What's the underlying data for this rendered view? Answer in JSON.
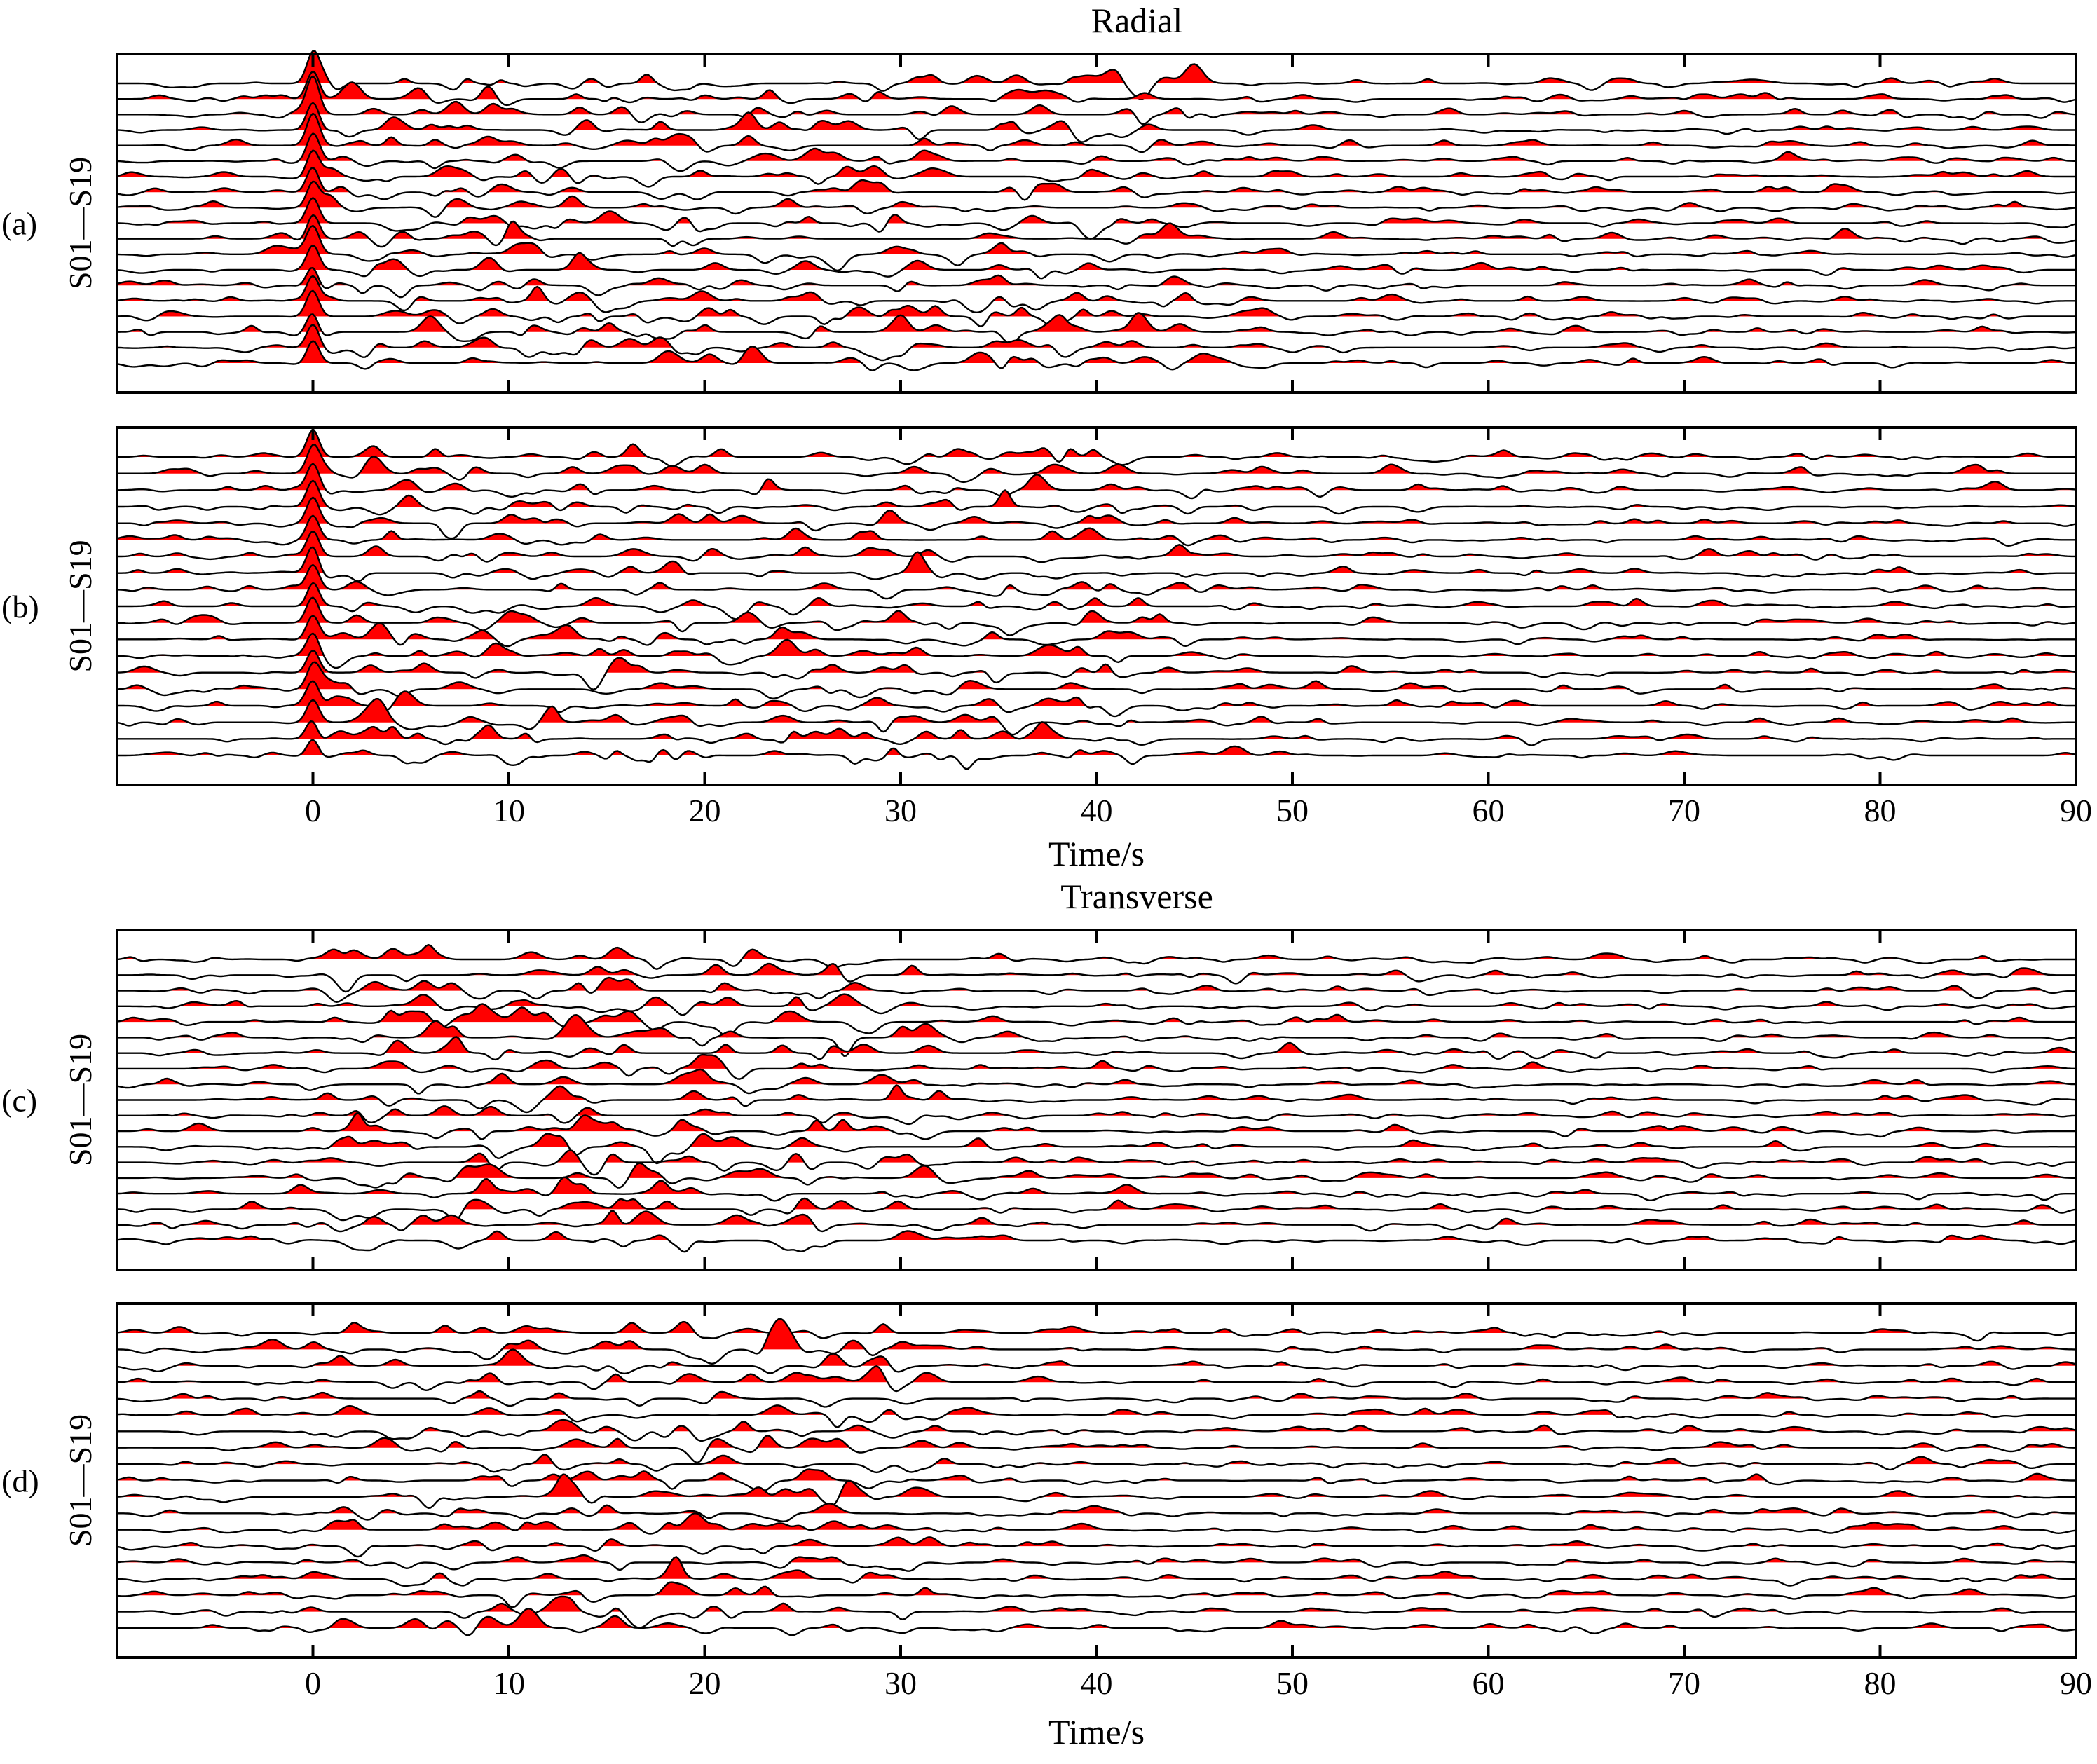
{
  "figure": {
    "top_title": "Radial",
    "bottom_title": "Transverse",
    "xlabel": "Time/s"
  },
  "chart_data": [
    {
      "type": "line",
      "panel_label": "(a)",
      "group_title": "Radial",
      "ylabel": "S01—S19",
      "xlabel": "",
      "xlim": [
        -10,
        90
      ],
      "xticks": [
        0,
        10,
        20,
        30,
        40,
        50,
        60,
        70,
        80,
        90
      ],
      "xticklabels_shown": false,
      "trace_count": 19,
      "positive_fill_color": "#ff0000",
      "trace_color": "#000000",
      "first_arrival_time": 0
    },
    {
      "type": "line",
      "panel_label": "(b)",
      "group_title": "Radial",
      "ylabel": "S01—S19",
      "xlabel": "Time/s",
      "xlim": [
        -10,
        90
      ],
      "xticks": [
        0,
        10,
        20,
        30,
        40,
        50,
        60,
        70,
        80,
        90
      ],
      "xticklabels": [
        "0",
        "10",
        "20",
        "30",
        "40",
        "50",
        "60",
        "70",
        "80",
        "90"
      ],
      "xticklabels_shown": true,
      "trace_count": 19,
      "positive_fill_color": "#ff0000",
      "trace_color": "#000000",
      "first_arrival_time": 0
    },
    {
      "type": "line",
      "panel_label": "(c)",
      "group_title": "Transverse",
      "ylabel": "S01—S19",
      "xlabel": "",
      "xlim": [
        -10,
        90
      ],
      "xticks": [
        0,
        10,
        20,
        30,
        40,
        50,
        60,
        70,
        80,
        90
      ],
      "xticklabels_shown": false,
      "trace_count": 19,
      "positive_fill_color": "#ff0000",
      "trace_color": "#000000"
    },
    {
      "type": "line",
      "panel_label": "(d)",
      "group_title": "Transverse",
      "ylabel": "S01—S19",
      "xlabel": "Time/s",
      "xlim": [
        -10,
        90
      ],
      "xticks": [
        0,
        10,
        20,
        30,
        40,
        50,
        60,
        70,
        80,
        90
      ],
      "xticklabels": [
        "0",
        "10",
        "20",
        "30",
        "40",
        "50",
        "60",
        "70",
        "80",
        "90"
      ],
      "xticklabels_shown": true,
      "trace_count": 19,
      "positive_fill_color": "#ff0000",
      "trace_color": "#000000"
    }
  ]
}
